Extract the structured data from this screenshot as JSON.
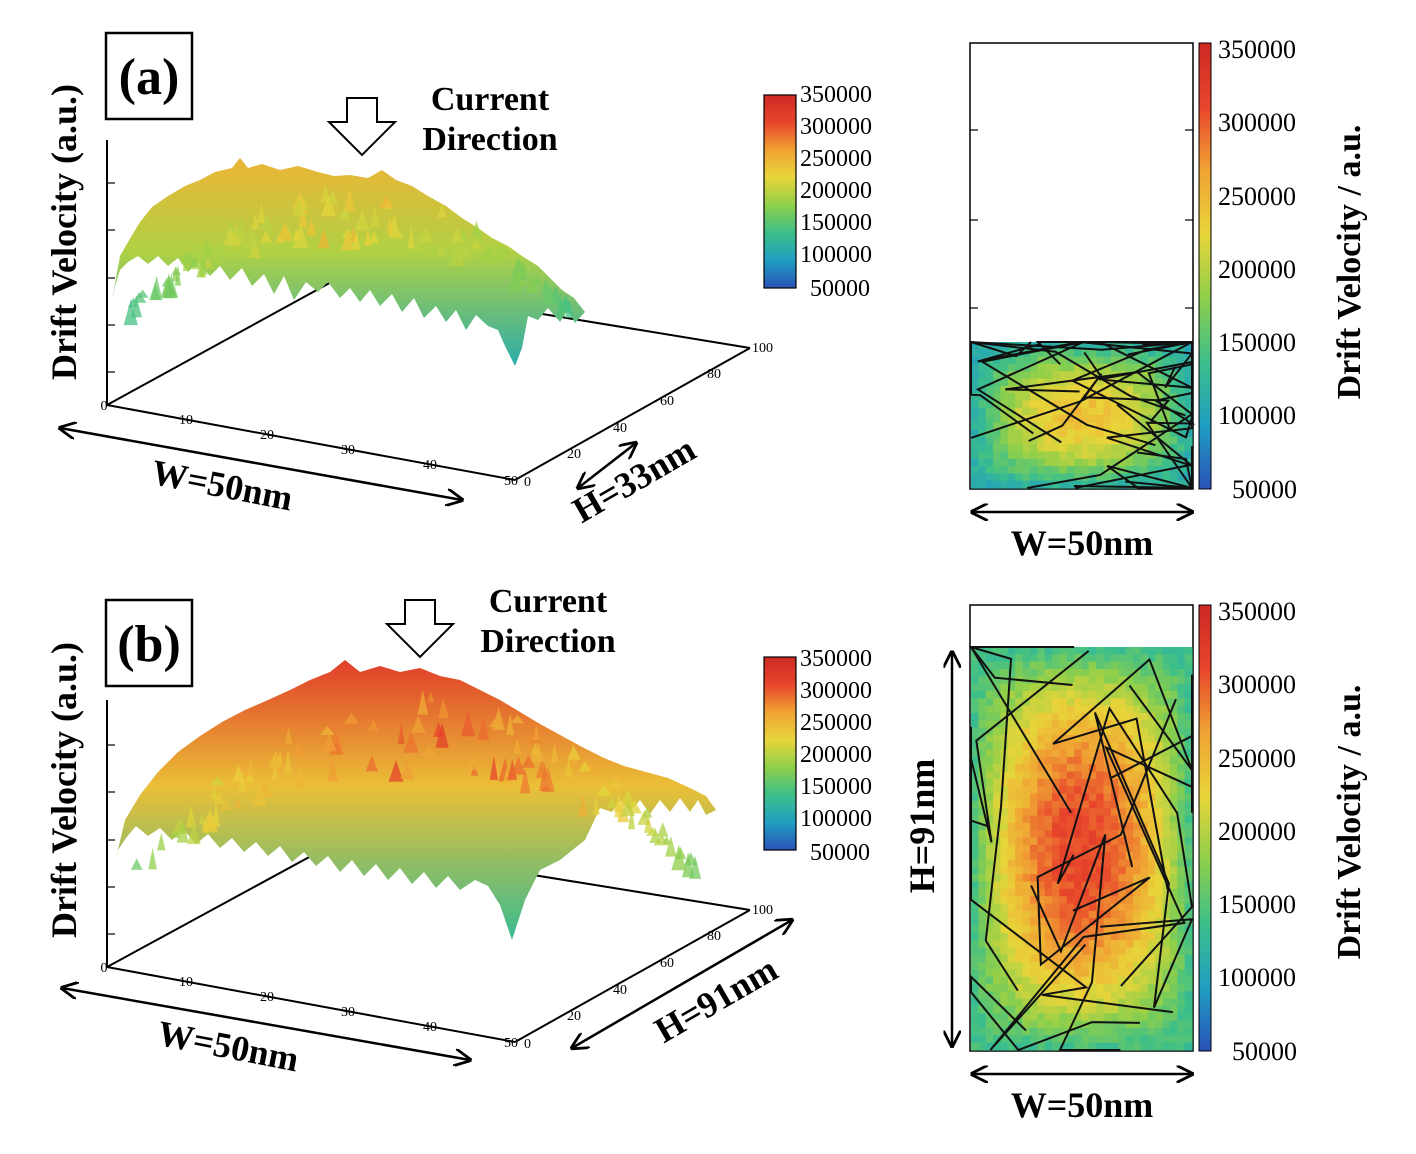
{
  "colors": {
    "scale": [
      "#2a52b8",
      "#1f9fc1",
      "#3dbf8a",
      "#8fcf4a",
      "#e8d53a",
      "#f0a334",
      "#e8452c",
      "#cc2a24"
    ],
    "frame": "#000000"
  },
  "colorbar_ticks": [
    "350000",
    "300000",
    "250000",
    "200000",
    "150000",
    "100000",
    "50000"
  ],
  "panels": [
    {
      "id": "a",
      "label": "(a)",
      "arrow_text": [
        "Current",
        "Direction"
      ],
      "z_axis_label": "Drift Velocity (a.u.)",
      "x_ticks": [
        "0",
        "10",
        "20",
        "30",
        "40",
        "50"
      ],
      "y_ticks": [
        "0",
        "20",
        "40",
        "60",
        "80",
        "100"
      ],
      "width_label": "W=50nm",
      "height_label": "H=33nm",
      "map_width_label": "W=50nm",
      "map_colorbar_label": "Drift Velocity / a.u."
    },
    {
      "id": "b",
      "label": "(b)",
      "arrow_text": [
        "Current",
        "Direction"
      ],
      "z_axis_label": "Drift Velocity (a.u.)",
      "x_ticks": [
        "0",
        "10",
        "20",
        "30",
        "40",
        "50"
      ],
      "y_ticks": [
        "0",
        "20",
        "40",
        "60",
        "80",
        "100"
      ],
      "width_label": "W=50nm",
      "height_label": "H=91nm",
      "map_width_label": "W=50nm",
      "map_height_label": "H=91nm",
      "map_colorbar_label": "Drift Velocity / a.u."
    }
  ],
  "chart_data": [
    {
      "type": "heatmap",
      "panel": "a",
      "view": "3d-surface",
      "x": [
        0,
        50
      ],
      "y": [
        0,
        33
      ],
      "zlim": [
        50000,
        350000
      ],
      "center_value": 250000,
      "edge_value": 140000,
      "colorbar_ticks": [
        350000,
        300000,
        250000,
        200000,
        150000,
        100000,
        50000
      ]
    },
    {
      "type": "heatmap",
      "panel": "a",
      "view": "2d-map",
      "x": [
        0,
        50
      ],
      "y": [
        0,
        33
      ],
      "zlim": [
        50000,
        350000
      ],
      "center_value": 240000,
      "edge_value": 150000,
      "colorbar_ticks": [
        350000,
        300000,
        250000,
        200000,
        150000,
        100000,
        50000
      ],
      "legend": "right"
    },
    {
      "type": "heatmap",
      "panel": "b",
      "view": "3d-surface",
      "x": [
        0,
        50
      ],
      "y": [
        0,
        91
      ],
      "zlim": [
        50000,
        350000
      ],
      "center_value": 320000,
      "edge_value": 160000,
      "colorbar_ticks": [
        350000,
        300000,
        250000,
        200000,
        150000,
        100000,
        50000
      ]
    },
    {
      "type": "heatmap",
      "panel": "b",
      "view": "2d-map",
      "x": [
        0,
        50
      ],
      "y": [
        0,
        91
      ],
      "zlim": [
        50000,
        350000
      ],
      "center_value": 310000,
      "edge_value": 175000,
      "colorbar_ticks": [
        350000,
        300000,
        250000,
        200000,
        150000,
        100000,
        50000
      ],
      "legend": "right"
    }
  ]
}
